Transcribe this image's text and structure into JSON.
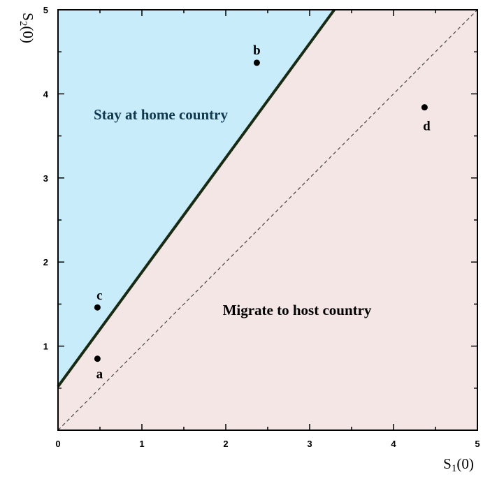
{
  "chart_data": {
    "type": "scatter",
    "title": "",
    "xlabel": "S",
    "xlabel_subscript": "1",
    "xlabel_suffix": "(0)",
    "ylabel": "S",
    "ylabel_subscript": "2",
    "ylabel_suffix": "(0)",
    "xlim": [
      0,
      5
    ],
    "ylim": [
      0,
      5
    ],
    "x_ticks": [
      "0",
      "1",
      "2",
      "3",
      "4",
      "5"
    ],
    "y_ticks": [
      "1",
      "2",
      "3",
      "4",
      "5"
    ],
    "grid": false,
    "boundary_line": {
      "intercept": 0.52,
      "slope": 1.36
    },
    "diagonal_line": {
      "intercept": 0,
      "slope": 1,
      "style": "dashed"
    },
    "regions": [
      {
        "name": "Stay at home country",
        "color": "#c8ecfa",
        "text_color": "#103a50"
      },
      {
        "name": "Migrate to host country",
        "color": "#f4e6e5",
        "text_color": "#000000"
      }
    ],
    "points": [
      {
        "label": "a",
        "x": 0.47,
        "y": 0.85
      },
      {
        "label": "b",
        "x": 2.37,
        "y": 4.37
      },
      {
        "label": "c",
        "x": 0.47,
        "y": 1.46
      },
      {
        "label": "d",
        "x": 4.37,
        "y": 3.84
      }
    ]
  }
}
